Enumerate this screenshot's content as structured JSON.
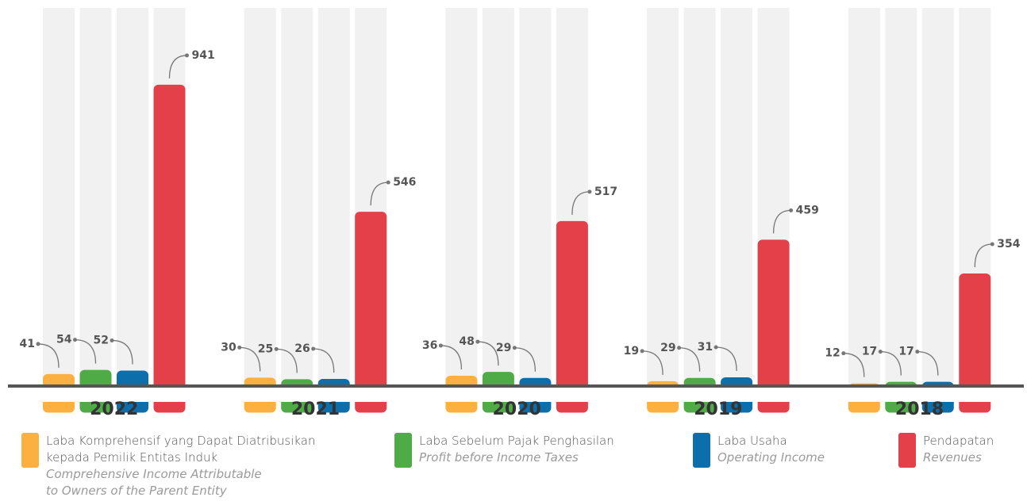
{
  "chart_data": {
    "type": "bar",
    "categories": [
      "2022",
      "2021",
      "2020",
      "2019",
      "2018"
    ],
    "series": [
      {
        "name": "Laba Komprehensif yang Dapat Diatribusikan kepada Pemilik Entitas Induk",
        "name_en": "Comprehensive Income Attributable to Owners of the Parent Entity",
        "color": "#fbb040",
        "values": [
          41,
          30,
          36,
          19,
          12
        ]
      },
      {
        "name": "Laba Sebelum Pajak Penghasilan",
        "name_en": "Profit before Income Taxes",
        "color": "#4fab46",
        "values": [
          54,
          25,
          48,
          29,
          17
        ]
      },
      {
        "name": "Laba Usaha",
        "name_en": "Operating Income",
        "color": "#0d6eac",
        "values": [
          52,
          26,
          29,
          31,
          17
        ]
      },
      {
        "name": "Pendapatan",
        "name_en": "Revenues",
        "color": "#e4404a",
        "values": [
          941,
          546,
          517,
          459,
          354
        ]
      }
    ],
    "ylim": [
      -64,
      1180
    ],
    "legend": "bottom"
  }
}
